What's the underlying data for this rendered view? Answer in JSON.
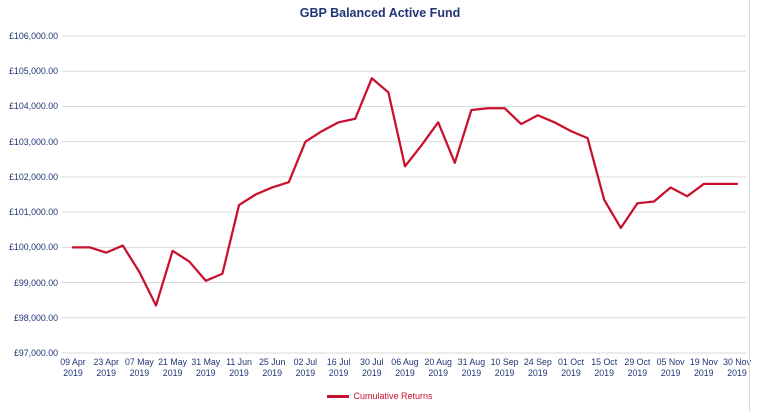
{
  "chart": {
    "title": "GBP Balanced Active Fund",
    "legend": {
      "label": "Cumulative Returns",
      "position": "bottom"
    },
    "colors": {
      "line": "#C8102E",
      "title_text": "#1F3575",
      "axis_text": "#1F3575",
      "gridline": "#D9D9D9"
    }
  },
  "chart_data": {
    "type": "line",
    "title": "GBP Balanced Active Fund",
    "grid": "horizontal",
    "legend_position": "bottom",
    "ylim": [
      97000,
      106000
    ],
    "y_tick_step": 1000,
    "y_axis": {
      "tick_labels_top_to_bottom": [
        "£106,000.00",
        "£105,000.00",
        "£104,000.00",
        "£103,000.00",
        "£102,000.00",
        "£101,000.00",
        "£100,000.00",
        "£99,000.00",
        "£98,000.00",
        "£97,000.00"
      ]
    },
    "x_axis": {
      "visible_tick_labels": [
        "09 Apr 2019",
        "23 Apr 2019",
        "07 May 2019",
        "21 May 2019",
        "31 May 2019",
        "11 Jun 2019",
        "25 Jun 2019",
        "02 Jul 2019",
        "16 Jul 2019",
        "30 Jul 2019",
        "06 Aug 2019",
        "20 Aug 2019",
        "31 Aug 2019",
        "10 Sep 2019",
        "24 Sep 2019",
        "01 Oct 2019",
        "15 Oct 2019",
        "29 Oct 2019",
        "05 Nov 2019",
        "19 Nov 2019",
        "30 Nov 2019"
      ],
      "note": "unlabeled intermediate data points exist between each pair of labeled ticks; their dates are not shown (empty date string)"
    },
    "series": [
      {
        "name": "Cumulative Returns",
        "color": "#C8102E",
        "points": [
          {
            "date": "09 Apr 2019",
            "value": 100000
          },
          {
            "date": "",
            "value": 100000
          },
          {
            "date": "23 Apr 2019",
            "value": 99850
          },
          {
            "date": "",
            "value": 100050
          },
          {
            "date": "07 May 2019",
            "value": 99300
          },
          {
            "date": "",
            "value": 98350
          },
          {
            "date": "21 May 2019",
            "value": 99900
          },
          {
            "date": "",
            "value": 99600
          },
          {
            "date": "31 May 2019",
            "value": 99050
          },
          {
            "date": "",
            "value": 99250
          },
          {
            "date": "11 Jun 2019",
            "value": 101200
          },
          {
            "date": "",
            "value": 101500
          },
          {
            "date": "25 Jun 2019",
            "value": 101700
          },
          {
            "date": "",
            "value": 101850
          },
          {
            "date": "02 Jul 2019",
            "value": 103000
          },
          {
            "date": "",
            "value": 103300
          },
          {
            "date": "16 Jul 2019",
            "value": 103550
          },
          {
            "date": "",
            "value": 103650
          },
          {
            "date": "30 Jul 2019",
            "value": 104800
          },
          {
            "date": "",
            "value": 104400
          },
          {
            "date": "06 Aug 2019",
            "value": 102300
          },
          {
            "date": "",
            "value": 102900
          },
          {
            "date": "20 Aug 2019",
            "value": 103550
          },
          {
            "date": "",
            "value": 102400
          },
          {
            "date": "31 Aug 2019",
            "value": 103900
          },
          {
            "date": "",
            "value": 103950
          },
          {
            "date": "10 Sep 2019",
            "value": 103950
          },
          {
            "date": "",
            "value": 103500
          },
          {
            "date": "24 Sep 2019",
            "value": 103750
          },
          {
            "date": "",
            "value": 103550
          },
          {
            "date": "01 Oct 2019",
            "value": 103300
          },
          {
            "date": "",
            "value": 103100
          },
          {
            "date": "15 Oct 2019",
            "value": 101350
          },
          {
            "date": "",
            "value": 100550
          },
          {
            "date": "29 Oct 2019",
            "value": 101250
          },
          {
            "date": "",
            "value": 101300
          },
          {
            "date": "05 Nov 2019",
            "value": 101700
          },
          {
            "date": "",
            "value": 101450
          },
          {
            "date": "19 Nov 2019",
            "value": 101800
          },
          {
            "date": "",
            "value": 101800
          },
          {
            "date": "30 Nov 2019",
            "value": 101800
          }
        ]
      }
    ]
  }
}
